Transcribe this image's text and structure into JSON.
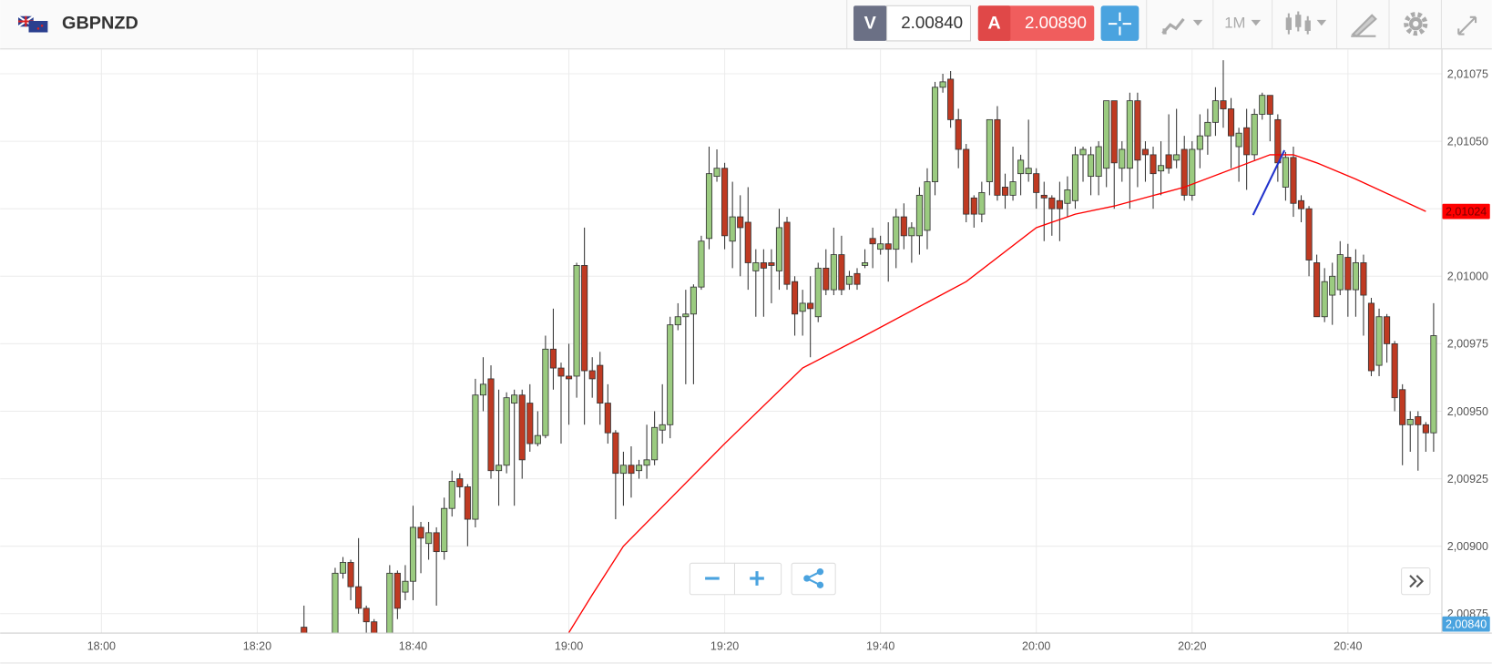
{
  "header": {
    "symbol": "GBPNZD",
    "bid_label": "V",
    "bid": "2.00840",
    "ask_label": "A",
    "ask": "2.00890",
    "timeframe": "1M"
  },
  "chart_data": {
    "type": "candlestick",
    "x": [
      "18:26",
      "18:30",
      "18:31",
      "18:32",
      "18:33",
      "18:34",
      "18:35",
      "18:37",
      "18:38",
      "18:39",
      "18:40",
      "18:41",
      "18:42",
      "18:43",
      "18:44",
      "18:45",
      "18:46",
      "18:47",
      "18:48",
      "18:49",
      "18:50",
      "18:51",
      "18:52",
      "18:53",
      "18:54",
      "18:55",
      "18:56",
      "18:57",
      "18:58",
      "18:59",
      "19:00",
      "19:01",
      "19:02",
      "19:03",
      "19:04",
      "19:05",
      "19:06",
      "19:07",
      "19:08",
      "19:09",
      "19:10",
      "19:11",
      "19:12",
      "19:13",
      "19:14",
      "19:15",
      "19:16",
      "19:17",
      "19:18",
      "19:19",
      "19:20",
      "19:21",
      "19:22",
      "19:23",
      "19:24",
      "19:25",
      "19:26",
      "19:27",
      "19:28",
      "19:29",
      "19:30",
      "19:31",
      "19:32",
      "19:33",
      "19:34",
      "19:35",
      "19:36",
      "19:37",
      "19:38",
      "19:39",
      "19:40",
      "19:41",
      "19:42",
      "19:43",
      "19:44",
      "19:45",
      "19:46",
      "19:47",
      "19:48",
      "19:49",
      "19:50",
      "19:51",
      "19:52",
      "19:53",
      "19:54",
      "19:55",
      "19:56",
      "19:57",
      "19:58",
      "19:59",
      "20:00",
      "20:01",
      "20:02",
      "20:03",
      "20:04",
      "20:05",
      "20:06",
      "20:07",
      "20:08",
      "20:09",
      "20:10",
      "20:11",
      "20:12",
      "20:13",
      "20:14",
      "20:15",
      "20:16",
      "20:17",
      "20:18",
      "20:19",
      "20:20",
      "20:21",
      "20:22",
      "20:23",
      "20:24",
      "20:25",
      "20:26",
      "20:27",
      "20:28",
      "20:29",
      "20:30",
      "20:31",
      "20:32",
      "20:33",
      "20:34",
      "20:35",
      "20:36",
      "20:37",
      "20:38",
      "20:39",
      "20:40",
      "20:41",
      "20:42",
      "20:43",
      "20:44",
      "20:45",
      "20:46",
      "20:47",
      "20:48",
      "20:49",
      "20:50",
      "20:51"
    ],
    "open": [
      2.0087,
      2.0086,
      2.0089,
      2.00894,
      2.00885,
      2.00877,
      2.00872,
      2.00866,
      2.0089,
      2.00883,
      2.00887,
      2.00907,
      2.00901,
      2.00905,
      2.00898,
      2.00914,
      2.00925,
      2.00922,
      2.0091,
      2.00956,
      2.00962,
      2.00928,
      2.0093,
      2.00953,
      2.00956,
      2.00953,
      2.00938,
      2.00941,
      2.00973,
      2.00966,
      2.00963,
      2.00963,
      2.01004,
      2.00965,
      2.00967,
      2.00953,
      2.00942,
      2.00927,
      2.0093,
      2.00928,
      2.0093,
      2.00932,
      2.00943,
      2.00945,
      2.00982,
      2.00985,
      2.00986,
      2.00996,
      2.01014,
      2.01037,
      2.0104,
      2.01013,
      2.01022,
      2.0102,
      2.01002,
      2.01005,
      2.01005,
      2.01002,
      2.0102,
      2.00998,
      2.00987,
      2.0099,
      2.00985,
      2.01003,
      2.00995,
      2.01008,
      2.00997,
      2.01001,
      2.01004,
      2.01014,
      2.0101,
      2.01012,
      2.0101,
      2.01022,
      2.01015,
      2.01015,
      2.01017,
      2.01035,
      2.0107,
      2.01073,
      2.01058,
      2.01047,
      2.01029,
      2.01023,
      2.01035,
      2.01058,
      2.01033,
      2.0103,
      2.01038,
      2.01038,
      2.01038,
      2.0103,
      2.01029,
      2.01028,
      2.01027,
      2.01028,
      2.01045,
      2.01037,
      2.01037,
      2.0104,
      2.01065,
      2.0104,
      2.0104,
      2.01065,
      2.01047,
      2.01045,
      2.01039,
      2.01045,
      2.01043,
      2.01047,
      2.0103,
      2.01047,
      2.01052,
      2.01057,
      2.01065,
      2.01062,
      2.01048,
      2.01055,
      2.01045,
      2.0106,
      2.01067,
      2.01058,
      2.01033,
      2.01044,
      2.01028,
      2.01025,
      2.01005,
      2.00985,
      2.00993,
      2.00995,
      2.01007,
      2.00995,
      2.01005,
      2.0099,
      2.00967,
      2.00985,
      2.00975,
      2.00958,
      2.00945,
      2.00948,
      2.00945,
      2.00942
    ],
    "high": [
      2.00878,
      2.00892,
      2.00896,
      2.00895,
      2.00903,
      2.00878,
      2.00873,
      2.00893,
      2.00891,
      2.00893,
      2.00915,
      2.00909,
      2.00909,
      2.00907,
      2.00918,
      2.00928,
      2.00927,
      2.00923,
      2.00962,
      2.0097,
      2.00967,
      2.00958,
      2.00957,
      2.00958,
      2.00958,
      2.0096,
      2.0095,
      2.00978,
      2.00988,
      2.00968,
      2.00975,
      2.01005,
      2.01018,
      2.0097,
      2.00972,
      2.0096,
      2.00943,
      2.00935,
      2.00937,
      2.00932,
      2.00945,
      2.0095,
      2.0096,
      2.00985,
      2.0099,
      2.00995,
      2.00997,
      2.01015,
      2.01048,
      2.01047,
      2.01042,
      2.01035,
      2.0103,
      2.01033,
      2.0101,
      2.0101,
      2.0101,
      2.01025,
      2.01022,
      2.01,
      2.00995,
      2.01,
      2.01005,
      2.0101,
      2.01018,
      2.01015,
      2.01002,
      2.01003,
      2.0101,
      2.01018,
      2.01015,
      2.0102,
      2.01025,
      2.01027,
      2.0102,
      2.01033,
      2.0104,
      2.01072,
      2.01075,
      2.01076,
      2.01062,
      2.01049,
      2.0103,
      2.01035,
      2.01058,
      2.01063,
      2.01038,
      2.01048,
      2.01045,
      2.01058,
      2.0104,
      2.01035,
      2.0103,
      2.01035,
      2.01037,
      2.01048,
      2.01048,
      2.01048,
      2.0105,
      2.01065,
      2.01065,
      2.0105,
      2.01068,
      2.01068,
      2.0105,
      2.01048,
      2.0105,
      2.0106,
      2.01062,
      2.01052,
      2.0105,
      2.0106,
      2.01062,
      2.0107,
      2.0108,
      2.01066,
      2.01055,
      2.01062,
      2.01062,
      2.01068,
      2.01067,
      2.0106,
      2.01046,
      2.01048,
      2.0103,
      2.01026,
      2.01008,
      2.01003,
      2.01005,
      2.01013,
      2.01012,
      2.0101,
      2.01008,
      2.00992,
      2.00988,
      2.00986,
      2.00976,
      2.0096,
      2.0095,
      2.0095,
      2.00946,
      2.0099
    ],
    "low": [
      2.0086,
      2.00855,
      2.00888,
      2.0088,
      2.00875,
      2.00868,
      2.0086,
      2.0086,
      2.00873,
      2.0088,
      2.0088,
      2.0089,
      2.00895,
      2.00878,
      2.00895,
      2.00911,
      2.00918,
      2.009,
      2.00907,
      2.0095,
      2.00925,
      2.00915,
      2.00927,
      2.00915,
      2.00925,
      2.00935,
      2.00937,
      2.0094,
      2.00958,
      2.00938,
      2.00945,
      2.00955,
      2.00945,
      2.00955,
      2.00945,
      2.00938,
      2.0091,
      2.00915,
      2.00918,
      2.00925,
      2.00925,
      2.0093,
      2.00938,
      2.0094,
      2.0098,
      2.0096,
      2.0096,
      2.00995,
      2.0101,
      2.01035,
      2.0101,
      2.01003,
      2.01,
      2.00995,
      2.00985,
      2.00985,
      2.0099,
      2.00995,
      2.00995,
      2.00978,
      2.00978,
      2.0097,
      2.00983,
      2.00993,
      2.00993,
      2.00993,
      2.00995,
      2.00995,
      2.01003,
      2.01003,
      2.01008,
      2.00998,
      2.01003,
      2.0101,
      2.01005,
      2.01008,
      2.0101,
      2.0103,
      2.01068,
      2.01055,
      2.0104,
      2.0102,
      2.01018,
      2.0102,
      2.0103,
      2.01028,
      2.01025,
      2.01028,
      2.0103,
      2.01035,
      2.01025,
      2.01013,
      2.01015,
      2.01013,
      2.01022,
      2.01025,
      2.01035,
      2.0103,
      2.0103,
      2.01033,
      2.01025,
      2.01035,
      2.01025,
      2.01033,
      2.01035,
      2.01025,
      2.0103,
      2.01038,
      2.0104,
      2.01028,
      2.01028,
      2.0104,
      2.01045,
      2.01052,
      2.01055,
      2.0104,
      2.01035,
      2.01032,
      2.01043,
      2.01058,
      2.0105,
      2.01035,
      2.01028,
      2.01022,
      2.0102,
      2.01,
      2.00985,
      2.00983,
      2.00982,
      2.00993,
      2.00985,
      2.00985,
      2.00978,
      2.00963,
      2.00963,
      2.00968,
      2.0095,
      2.0093,
      2.00935,
      2.00928,
      2.00935,
      2.00935
    ],
    "close": [
      2.00865,
      2.0089,
      2.00894,
      2.00885,
      2.00877,
      2.00872,
      2.00866,
      2.0089,
      2.00877,
      2.00887,
      2.00907,
      2.00903,
      2.00905,
      2.00898,
      2.00914,
      2.00924,
      2.00922,
      2.0091,
      2.00956,
      2.0096,
      2.00928,
      2.0093,
      2.00955,
      2.00956,
      2.00932,
      2.00938,
      2.00941,
      2.00973,
      2.00966,
      2.00963,
      2.00962,
      2.01004,
      2.00965,
      2.00962,
      2.00953,
      2.00942,
      2.00927,
      2.0093,
      2.00927,
      2.0093,
      2.00932,
      2.00944,
      2.00945,
      2.00982,
      2.00985,
      2.00986,
      2.00996,
      2.01013,
      2.01038,
      2.0104,
      2.01015,
      2.01022,
      2.01018,
      2.01005,
      2.01005,
      2.01003,
      2.01004,
      2.01018,
      2.00997,
      2.00986,
      2.0099,
      2.00988,
      2.01003,
      2.00995,
      2.01008,
      2.00995,
      2.01,
      2.00997,
      2.01005,
      2.01012,
      2.01012,
      2.0101,
      2.01022,
      2.01015,
      2.01018,
      2.0103,
      2.01035,
      2.0107,
      2.01072,
      2.01058,
      2.01047,
      2.01023,
      2.01023,
      2.01031,
      2.01058,
      2.0103,
      2.0103,
      2.01035,
      2.01043,
      2.0104,
      2.01031,
      2.01029,
      2.01025,
      2.01025,
      2.01032,
      2.01045,
      2.01047,
      2.01045,
      2.01048,
      2.01065,
      2.01042,
      2.01047,
      2.01065,
      2.01043,
      2.01045,
      2.01038,
      2.01041,
      2.0104,
      2.01045,
      2.0103,
      2.01047,
      2.01052,
      2.01057,
      2.01065,
      2.01062,
      2.01052,
      2.01053,
      2.01045,
      2.0106,
      2.01067,
      2.0106,
      2.01042,
      2.01044,
      2.01027,
      2.01025,
      2.01006,
      2.00985,
      2.00998,
      2.01,
      2.01008,
      2.00995,
      2.01005,
      2.00993,
      2.00965,
      2.00985,
      2.00975,
      2.00955,
      2.00945,
      2.00947,
      2.00945,
      2.00942,
      2.00978
    ],
    "up_color": "#9bcb80",
    "down_color": "#bf3a22",
    "wick_color": "#333333",
    "ma": {
      "color": "#ff0000",
      "x": [
        "19:00",
        "19:03",
        "19:07",
        "19:20",
        "19:30",
        "19:38",
        "19:51",
        "20:00",
        "20:05",
        "20:10",
        "20:19",
        "20:30",
        "20:33",
        "20:36",
        "20:41",
        "20:50"
      ],
      "values": [
        2.00868,
        2.00882,
        2.009,
        2.00938,
        2.00966,
        2.00978,
        2.00998,
        2.01018,
        2.01023,
        2.01026,
        2.01033,
        2.01045,
        2.01045,
        2.01042,
        2.01036,
        2.01024
      ]
    },
    "price_tags": [
      {
        "value": 2.01024,
        "label": "2,01024",
        "color": "#ff0000",
        "text_color": "#7a0000"
      },
      {
        "value": 2.0084,
        "label": "2,00840",
        "color": "#4aa3df",
        "text_color": "#ffffff"
      }
    ],
    "xlim": [
      "17:47",
      "20:52"
    ],
    "xticks": [
      "18:00",
      "18:20",
      "18:40",
      "19:00",
      "19:20",
      "19:40",
      "20:00",
      "20:20",
      "20:40"
    ],
    "ylim": [
      2.00868,
      2.01084
    ],
    "yticks": [
      {
        "value": 2.00875,
        "label": "2,00875"
      },
      {
        "value": 2.009,
        "label": "2,00900"
      },
      {
        "value": 2.00925,
        "label": "2,00925"
      },
      {
        "value": 2.0095,
        "label": "2,00950"
      },
      {
        "value": 2.00975,
        "label": "2,00975"
      },
      {
        "value": 2.01,
        "label": "2,01000"
      },
      {
        "value": 2.01025,
        "label": "2,01025"
      },
      {
        "value": 2.0105,
        "label": "2,01050"
      },
      {
        "value": 2.01075,
        "label": "2,01075"
      }
    ],
    "grid": true
  }
}
